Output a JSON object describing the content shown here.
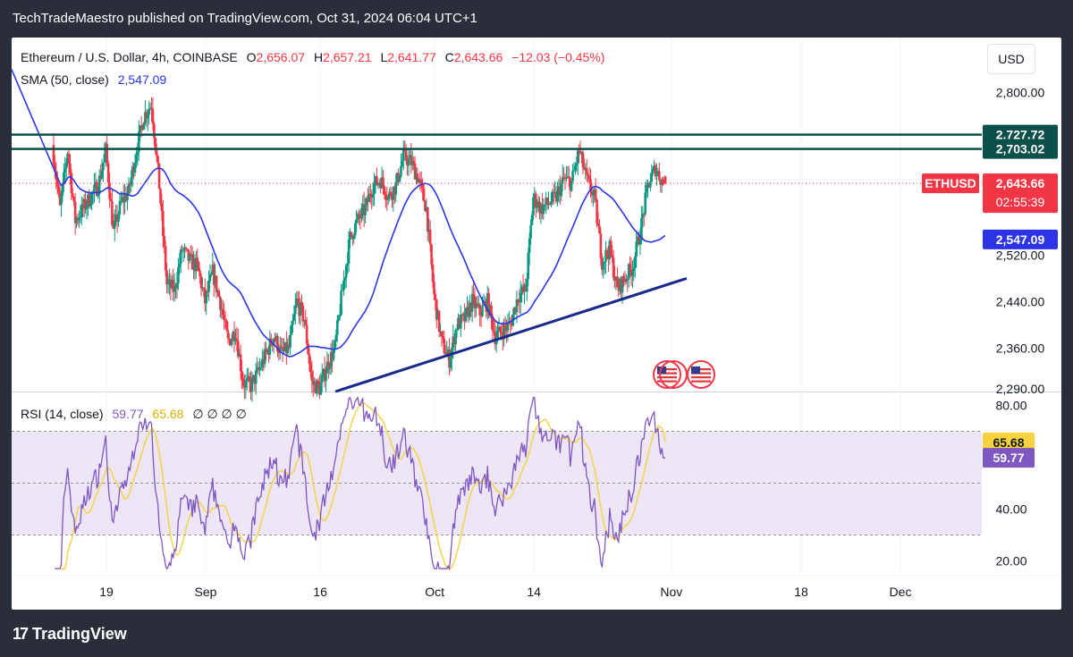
{
  "header": {
    "publish_line": "TechTradeMaestro published on TradingView.com, Oct 31, 2024 06:04 UTC+1"
  },
  "legend": {
    "symbol": "Ethereum / U.S. Dollar, 4h, COINBASE",
    "o_label": "O",
    "o_value": "2,656.07",
    "h_label": "H",
    "h_value": "2,657.21",
    "l_label": "L",
    "l_value": "2,641.77",
    "c_label": "C",
    "c_value": "2,643.66",
    "change": "−12.03 (−0.45%)",
    "sma_label": "SMA (50, close)",
    "sma_value": "2,547.09",
    "rsi_label": "RSI (14, close)",
    "rsi_value": "59.77",
    "rsi_ma_value": "65.68",
    "rsi_empty": "∅ ∅ ∅ ∅"
  },
  "currency": "USD",
  "footer": {
    "brand": "TradingView",
    "logo_glyph": "17"
  },
  "colors": {
    "up": "#089981",
    "down": "#f23645",
    "sma": "#2b35e6",
    "resistance": "#0b4f4b",
    "support": "#1a2a8c",
    "rsi": "#7e57c2",
    "rsi_ma": "#f7d23e",
    "rsi_band": "#ece6f6"
  },
  "chart_data": [
    {
      "type": "candlestick",
      "y_axis": {
        "range": [
          2285,
          2895
        ],
        "ticks": [
          "2,800.00",
          "2,520.00",
          "2,440.00",
          "2,360.00",
          "2,290.00"
        ],
        "tick_values": [
          2800,
          2520,
          2440,
          2360,
          2290
        ]
      },
      "x_axis": {
        "labels": [
          "19",
          "Sep",
          "16",
          "Oct",
          "14",
          "Nov",
          "18",
          "Dec"
        ],
        "dates": [
          "2024-08-19",
          "2024-09-01",
          "2024-09-16",
          "2024-10-01",
          "2024-10-14",
          "2024-11-01",
          "2024-11-18",
          "2024-12-01"
        ]
      },
      "price_labels": [
        {
          "text": "2,727.72",
          "value": 2727.72,
          "kind": "resistance"
        },
        {
          "text": "2,703.02",
          "value": 2703.02,
          "kind": "resistance"
        },
        {
          "text": "2,643.66",
          "value": 2643.66,
          "kind": "last",
          "symbol": "ETHUSD",
          "countdown": "02:55:39"
        },
        {
          "text": "2,547.09",
          "value": 2547.09,
          "kind": "sma"
        }
      ],
      "resistance_lines": [
        2727.72,
        2703.02
      ],
      "support_line": {
        "from": [
          "2024-09-18",
          2285
        ],
        "to": [
          "2024-11-03",
          2480
        ]
      },
      "price_anchors": [
        [
          "2024-08-12",
          2710
        ],
        [
          "2024-08-13",
          2600
        ],
        [
          "2024-08-14",
          2700
        ],
        [
          "2024-08-15",
          2580
        ],
        [
          "2024-08-16",
          2600
        ],
        [
          "2024-08-17",
          2620
        ],
        [
          "2024-08-18",
          2640
        ],
        [
          "2024-08-19",
          2700
        ],
        [
          "2024-08-20",
          2560
        ],
        [
          "2024-08-21",
          2610
        ],
        [
          "2024-08-22",
          2630
        ],
        [
          "2024-08-23",
          2700
        ],
        [
          "2024-08-24",
          2760
        ],
        [
          "2024-08-25",
          2780
        ],
        [
          "2024-08-26",
          2640
        ],
        [
          "2024-08-27",
          2470
        ],
        [
          "2024-08-28",
          2460
        ],
        [
          "2024-08-29",
          2530
        ],
        [
          "2024-08-30",
          2510
        ],
        [
          "2024-08-31",
          2500
        ],
        [
          "2024-09-01",
          2440
        ],
        [
          "2024-09-02",
          2490
        ],
        [
          "2024-09-03",
          2440
        ],
        [
          "2024-09-04",
          2370
        ],
        [
          "2024-09-05",
          2390
        ],
        [
          "2024-09-06",
          2300
        ],
        [
          "2024-09-07",
          2295
        ],
        [
          "2024-09-08",
          2320
        ],
        [
          "2024-09-09",
          2350
        ],
        [
          "2024-09-10",
          2380
        ],
        [
          "2024-09-11",
          2350
        ],
        [
          "2024-09-12",
          2360
        ],
        [
          "2024-09-13",
          2440
        ],
        [
          "2024-09-14",
          2410
        ],
        [
          "2024-09-15",
          2300
        ],
        [
          "2024-09-16",
          2290
        ],
        [
          "2024-09-17",
          2330
        ],
        [
          "2024-09-18",
          2360
        ],
        [
          "2024-09-19",
          2460
        ],
        [
          "2024-09-20",
          2550
        ],
        [
          "2024-09-21",
          2580
        ],
        [
          "2024-09-22",
          2600
        ],
        [
          "2024-09-23",
          2640
        ],
        [
          "2024-09-24",
          2650
        ],
        [
          "2024-09-25",
          2620
        ],
        [
          "2024-09-26",
          2640
        ],
        [
          "2024-09-27",
          2690
        ],
        [
          "2024-09-28",
          2680
        ],
        [
          "2024-09-29",
          2650
        ],
        [
          "2024-09-30",
          2600
        ],
        [
          "2024-10-01",
          2450
        ],
        [
          "2024-10-02",
          2370
        ],
        [
          "2024-10-03",
          2340
        ],
        [
          "2024-10-04",
          2400
        ],
        [
          "2024-10-05",
          2410
        ],
        [
          "2024-10-06",
          2440
        ],
        [
          "2024-10-07",
          2420
        ],
        [
          "2024-10-08",
          2440
        ],
        [
          "2024-10-09",
          2380
        ],
        [
          "2024-10-10",
          2390
        ],
        [
          "2024-10-11",
          2400
        ],
        [
          "2024-10-12",
          2450
        ],
        [
          "2024-10-13",
          2460
        ],
        [
          "2024-10-14",
          2620
        ],
        [
          "2024-10-15",
          2600
        ],
        [
          "2024-10-16",
          2610
        ],
        [
          "2024-10-17",
          2620
        ],
        [
          "2024-10-18",
          2650
        ],
        [
          "2024-10-19",
          2645
        ],
        [
          "2024-10-20",
          2700
        ],
        [
          "2024-10-21",
          2650
        ],
        [
          "2024-10-22",
          2620
        ],
        [
          "2024-10-23",
          2510
        ],
        [
          "2024-10-24",
          2530
        ],
        [
          "2024-10-25",
          2460
        ],
        [
          "2024-10-26",
          2480
        ],
        [
          "2024-10-27",
          2500
        ],
        [
          "2024-10-28",
          2560
        ],
        [
          "2024-10-29",
          2640
        ],
        [
          "2024-10-30",
          2670
        ],
        [
          "2024-10-31",
          2643.66
        ]
      ]
    },
    {
      "type": "line",
      "title": "RSI (14, close)",
      "y_axis": {
        "range": [
          15,
          85
        ],
        "ticks": [
          "80.00",
          "40.00",
          "20.00"
        ],
        "tick_values": [
          80,
          40,
          20
        ]
      },
      "bands": {
        "upper": 70,
        "middle": 50,
        "lower": 30
      },
      "value_labels": [
        {
          "text": "65.68",
          "value": 65.68,
          "kind": "rsi_ma"
        },
        {
          "text": "59.77",
          "value": 59.77,
          "kind": "rsi"
        }
      ]
    }
  ]
}
